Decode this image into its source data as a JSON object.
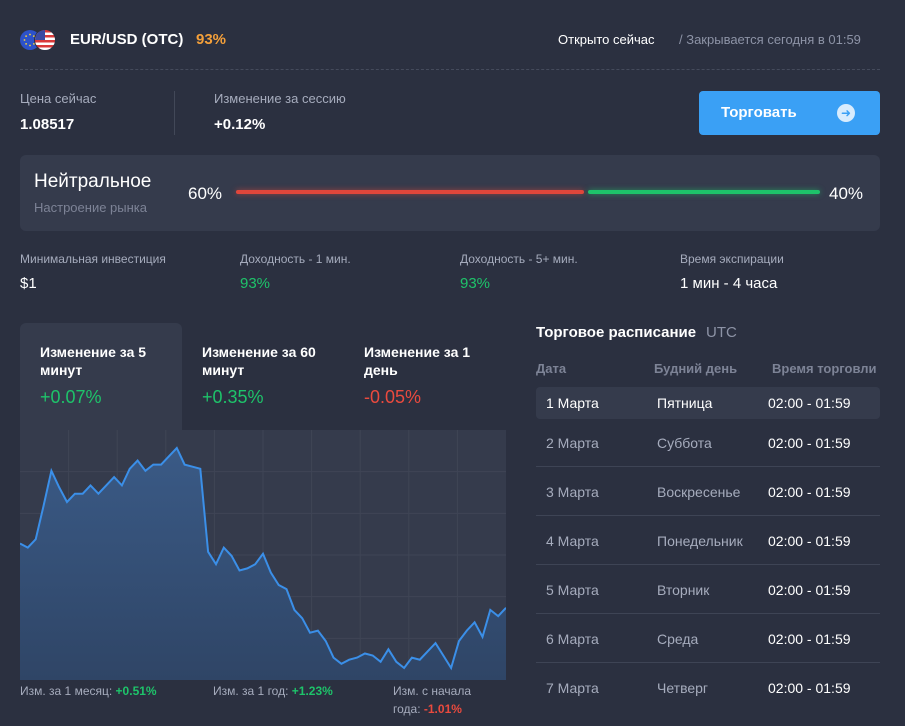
{
  "header": {
    "pair": "EUR/USD (OTC)",
    "payout": "93%",
    "open_status": "Открыто сейчас",
    "closes_text": "/ Закрывается сегодня в 01:59",
    "flags": [
      "eu-flag-icon",
      "us-flag-icon"
    ]
  },
  "price": {
    "label": "Цена сейчас",
    "value": "1.08517"
  },
  "session_change": {
    "label": "Изменение за сессию",
    "value": "+0.12%"
  },
  "trade_button": {
    "label": "Торговать",
    "icon": "arrow-right-icon"
  },
  "sentiment": {
    "title": "Нейтральное",
    "subtitle": "Настроение рынка",
    "sell_pct": "60%",
    "buy_pct": "40%",
    "sell_share": 0.6,
    "buy_share": 0.4
  },
  "info": [
    {
      "label": "Минимальная инвестиция",
      "value": "$1",
      "tone": "white"
    },
    {
      "label": "Доходность - 1 мин.",
      "value": "93%",
      "tone": "green"
    },
    {
      "label": "Доходность - 5+ мин.",
      "value": "93%",
      "tone": "green"
    },
    {
      "label": "Время экспирации",
      "value": "1 мин - 4 часа",
      "tone": "white"
    }
  ],
  "change_tabs": [
    {
      "title": "Изменение за 5 минут",
      "value": "+0.07%",
      "tone": "green",
      "active": true
    },
    {
      "title": "Изменение за 60 минут",
      "value": "+0.35%",
      "tone": "green",
      "active": false
    },
    {
      "title": "Изменение за 1 день",
      "value": "-0.05%",
      "tone": "red",
      "active": false
    }
  ],
  "chart_data": {
    "type": "area",
    "title": "",
    "xlabel": "",
    "ylabel": "",
    "grid": true,
    "values": [
      0.6,
      0.58,
      0.62,
      0.78,
      0.95,
      0.87,
      0.8,
      0.84,
      0.84,
      0.88,
      0.84,
      0.88,
      0.92,
      0.88,
      0.96,
      1.0,
      0.95,
      0.98,
      0.98,
      1.02,
      1.06,
      0.98,
      0.97,
      0.96,
      0.56,
      0.5,
      0.58,
      0.54,
      0.47,
      0.48,
      0.5,
      0.55,
      0.46,
      0.4,
      0.38,
      0.28,
      0.24,
      0.17,
      0.18,
      0.13,
      0.05,
      0.02,
      0.04,
      0.05,
      0.07,
      0.06,
      0.03,
      0.09,
      0.03,
      0.0,
      0.05,
      0.04,
      0.08,
      0.12,
      0.06,
      0.0,
      0.13,
      0.18,
      0.22,
      0.15,
      0.28,
      0.25,
      0.29
    ],
    "colors": {
      "line": "#3b8fe8",
      "fill_top": "#3a5a86",
      "fill_bottom": "#2f4566"
    }
  },
  "chart_footer": {
    "month_label": "Изм. за 1 месяц:",
    "month_value": "+0.51%",
    "year_label": "Изм. за 1 год:",
    "year_value": "+1.23%",
    "ytd_label_1": "Изм. с начала",
    "ytd_label_2": "года:",
    "ytd_value": "-1.01%"
  },
  "schedule": {
    "title": "Торговое расписание",
    "timezone": "UTC",
    "headers": [
      "Дата",
      "Будний день",
      "Время торговли"
    ],
    "rows": [
      {
        "date": "1 Марта",
        "day": "Пятница",
        "time": "02:00 - 01:59",
        "highlight": true
      },
      {
        "date": "2 Марта",
        "day": "Суббота",
        "time": "02:00 - 01:59",
        "highlight": false
      },
      {
        "date": "3 Марта",
        "day": "Воскресенье",
        "time": "02:00 - 01:59",
        "highlight": false
      },
      {
        "date": "4 Марта",
        "day": "Понедельник",
        "time": "02:00 - 01:59",
        "highlight": false
      },
      {
        "date": "5 Марта",
        "day": "Вторник",
        "time": "02:00 - 01:59",
        "highlight": false
      },
      {
        "date": "6 Марта",
        "day": "Среда",
        "time": "02:00 - 01:59",
        "highlight": false
      },
      {
        "date": "7 Марта",
        "day": "Четверг",
        "time": "02:00 - 01:59",
        "highlight": false
      }
    ]
  },
  "colors": {
    "background": "#2b3040",
    "accent": "#3aa0f5",
    "positive": "#1ec36a",
    "negative": "#ea4a3e",
    "payout": "#f5a03a"
  }
}
